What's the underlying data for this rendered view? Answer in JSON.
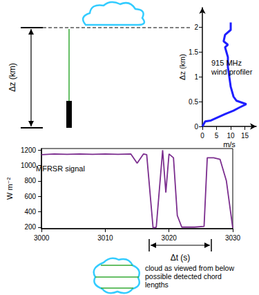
{
  "chart_data": [
    {
      "type": "line",
      "annotation": [
        "915 MHz",
        "wind profiler"
      ],
      "x_label": "m/s",
      "y_label": "Δz (km)",
      "x": [
        0,
        1,
        3,
        8,
        11,
        13,
        15.5,
        12,
        11,
        10,
        9.5,
        9,
        9,
        8.5,
        8,
        9,
        7.5,
        8,
        10,
        10
      ],
      "values": [
        0,
        0.1,
        0.12,
        0.25,
        0.32,
        0.38,
        0.45,
        0.52,
        0.6,
        0.8,
        1.0,
        1.2,
        1.4,
        1.5,
        1.6,
        1.65,
        1.72,
        1.85,
        1.95,
        2.1
      ],
      "color": "#1f1fff",
      "xlim": [
        0,
        19
      ],
      "xticks": [
        0,
        5,
        10,
        15
      ],
      "ylim": [
        0,
        2.4
      ],
      "yticks": [
        0,
        0.5,
        1,
        1.5,
        2
      ],
      "grid": false
    },
    {
      "type": "line",
      "annotation": [
        "MFRSR signal"
      ],
      "y_label": "W m⁻²",
      "x": [
        3000,
        3002,
        3004,
        3006,
        3008,
        3010,
        3012,
        3014,
        3015,
        3016,
        3016.5,
        3017.5,
        3018,
        3018.5,
        3019,
        3019.5,
        3020,
        3020.7,
        3021.3,
        3022,
        3024,
        3025.5,
        3026,
        3027,
        3028,
        3029,
        3030
      ],
      "values": [
        1140,
        1150,
        1145,
        1150,
        1145,
        1150,
        1145,
        1150,
        1030,
        1150,
        1140,
        190,
        200,
        700,
        1200,
        650,
        1150,
        1100,
        350,
        200,
        200,
        210,
        1100,
        1100,
        1080,
        800,
        190
      ],
      "color": "#7b2d8e",
      "xlim": [
        3000,
        3030
      ],
      "xticks": [
        3000,
        3010,
        3020,
        3030
      ],
      "ylim": [
        180,
        1220
      ],
      "yticks": [
        200,
        400,
        600,
        800,
        1000,
        1200
      ],
      "grid": false
    }
  ],
  "diagram": {
    "height_label": "Δz (km)",
    "time_label": "Δt (s)",
    "caption": [
      "cloud as viewed from below",
      "possible detected chord",
      "lengths"
    ]
  }
}
